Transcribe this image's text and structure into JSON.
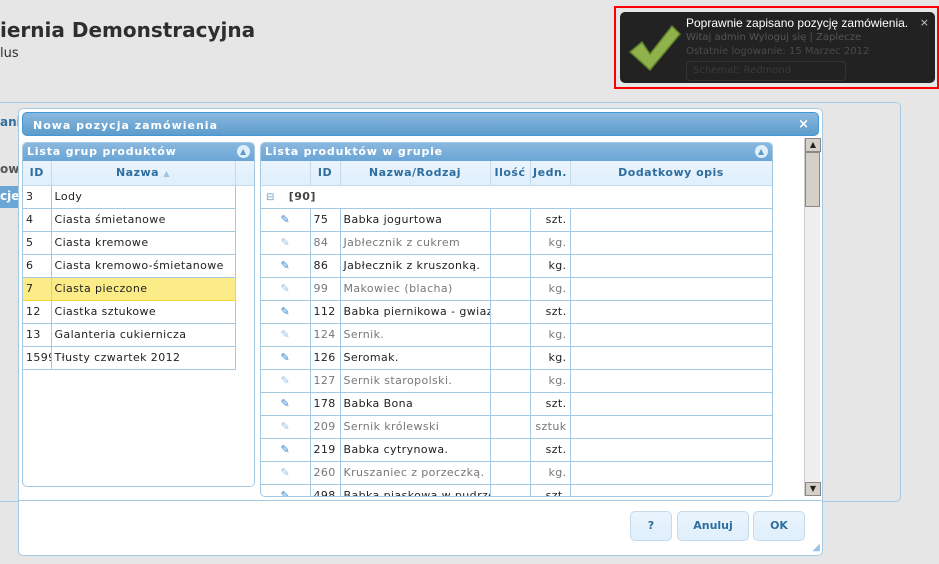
{
  "header": {
    "title": "iernia Demonstracyjna",
    "subtitle": "lus"
  },
  "background": {
    "stubs": [
      "ani",
      "ow",
      "cje"
    ]
  },
  "dialog": {
    "title": "Nowa pozycja zamówienia",
    "close": "×",
    "groups": {
      "title": "Lista grup produktów",
      "columns": [
        "ID",
        "Nazwa"
      ],
      "sort_icon": "sort-icon",
      "rows": [
        [
          "3",
          "Lody"
        ],
        [
          "4",
          "Ciasta śmietanowe"
        ],
        [
          "5",
          "Ciasta kremowe"
        ],
        [
          "6",
          "Ciasta kremowo-śmietanowe"
        ],
        [
          "7",
          "Ciasta pieczone"
        ],
        [
          "12",
          "Ciastka sztukowe"
        ],
        [
          "13",
          "Galanteria cukiernicza"
        ],
        [
          "1599",
          "Tłusty czwartek 2012"
        ]
      ],
      "selected_id": "7"
    },
    "products": {
      "title": "Lista produktów w grupie",
      "columns": [
        "",
        "ID",
        "Nazwa/Rodzaj",
        "Ilość",
        "Jedn.",
        "Dodatkowy opis"
      ],
      "group_label": "[90]",
      "rows": [
        [
          "75",
          "Babka jogurtowa",
          "",
          "szt.",
          ""
        ],
        [
          "84",
          "Jabłecznik z cukrem",
          "",
          "kg.",
          ""
        ],
        [
          "86",
          "Jabłecznik z kruszonką.",
          "",
          "kg.",
          ""
        ],
        [
          "99",
          "Makowiec (blacha)",
          "",
          "kg.",
          ""
        ],
        [
          "112",
          "Babka piernikowa - gwiazdka",
          "",
          "szt.",
          ""
        ],
        [
          "124",
          "Sernik.",
          "",
          "kg.",
          ""
        ],
        [
          "126",
          "Seromak.",
          "",
          "kg.",
          ""
        ],
        [
          "127",
          "Sernik staropolski.",
          "",
          "kg.",
          ""
        ],
        [
          "178",
          "Babka Bona",
          "",
          "szt.",
          ""
        ],
        [
          "209",
          "Sernik królewski",
          "",
          "sztuk",
          ""
        ],
        [
          "219",
          "Babka cytrynowa.",
          "",
          "szt.",
          ""
        ],
        [
          "260",
          "Kruszaniec z porzeczką.",
          "",
          "kg.",
          ""
        ],
        [
          "498",
          "Babka piaskowa w pudrze",
          "",
          "szt.",
          ""
        ]
      ]
    },
    "buttons": {
      "help": "?",
      "cancel": "Anuluj",
      "ok": "OK"
    }
  },
  "toast": {
    "message": "Poprawnie zapisano pozycję zamówienia.",
    "close": "×",
    "icon": "checkmark-icon",
    "behind": {
      "welcome": "Witaj admin   Wyloguj się  |  Zaplecze",
      "last_login": "Ostatnie logowanie: 15 Marzec 2012",
      "theme": "Schemat: Redmond"
    }
  },
  "colors": {
    "accent": "#5c9ccc",
    "selected": "#fbec88",
    "toast_bg": "#222222",
    "highlight_frame": "#ff0000"
  }
}
